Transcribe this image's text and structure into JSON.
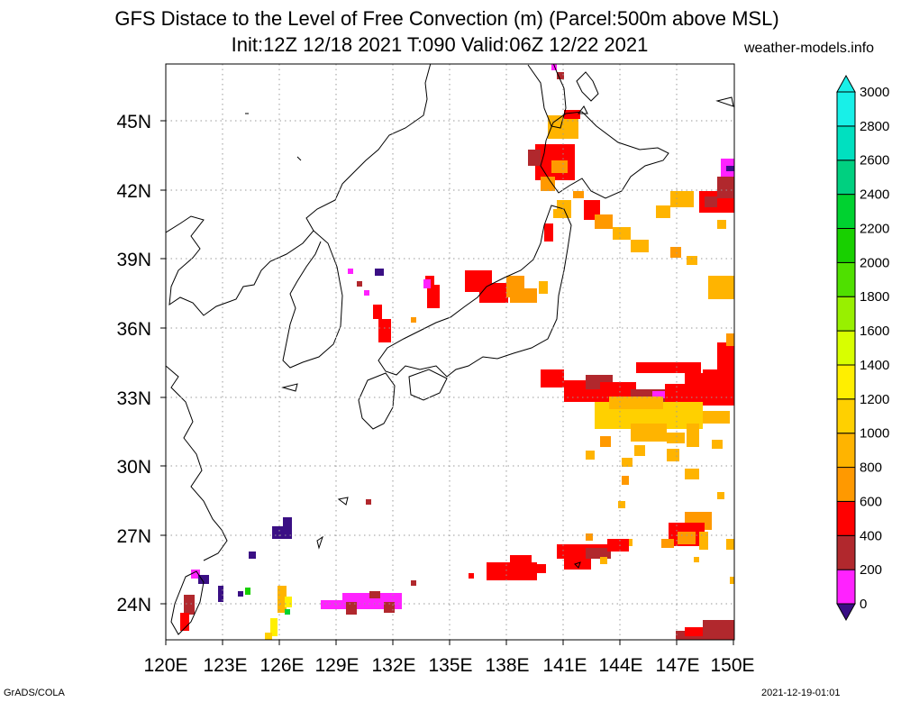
{
  "header": {
    "title_line1": "GFS Distace to the Level of Free Convection (m) (Parcel:500m above MSL)",
    "title_line2": "Init:12Z 12/18 2021 T:090 Valid:06Z 12/22 2021",
    "site": "weather-models.info"
  },
  "footer": {
    "left": "GrADS/COLA",
    "right": "2021-12-19-01:01"
  },
  "map": {
    "lon_range": [
      120,
      150
    ],
    "lat_range": [
      22.5,
      47.5
    ],
    "lon_ticks": [
      "120E",
      "123E",
      "126E",
      "129E",
      "132E",
      "135E",
      "138E",
      "141E",
      "144E",
      "147E",
      "150E"
    ],
    "lat_ticks": [
      "24N",
      "27N",
      "30N",
      "33N",
      "36N",
      "39N",
      "42N",
      "45N"
    ]
  },
  "colorbar": {
    "labels": [
      "0",
      "200",
      "400",
      "600",
      "800",
      "1000",
      "1200",
      "1400",
      "1600",
      "1800",
      "2000",
      "2200",
      "2400",
      "2600",
      "2800",
      "3000"
    ],
    "colors": [
      "#3a0f84",
      "#ff22ff",
      "#b1282d",
      "#ff0000",
      "#ff9900",
      "#ffb400",
      "#ffd000",
      "#ffef00",
      "#d8ff00",
      "#98f000",
      "#4fe000",
      "#18d000",
      "#00d230",
      "#00d080",
      "#00e0c0",
      "#18f0e8"
    ]
  }
}
